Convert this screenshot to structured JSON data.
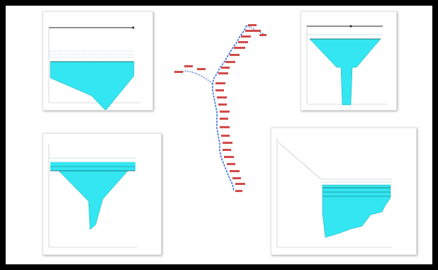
{
  "panels": {
    "top_left": {
      "title": "",
      "legend": [
        "",
        "",
        "",
        "",
        "",
        "",
        "",
        "",
        "",
        ""
      ]
    },
    "top_right": {
      "title": "",
      "legend": [
        "",
        "",
        "",
        "",
        "",
        "",
        "",
        "",
        "",
        ""
      ]
    },
    "bottom_left": {
      "title": "",
      "legend": [
        "",
        "",
        "",
        "",
        "",
        "",
        "",
        "",
        "",
        ""
      ],
      "footnote": ""
    },
    "bottom_right": {
      "title": "",
      "legend": [
        "",
        "",
        "",
        "",
        "",
        "",
        "",
        "",
        "",
        "",
        "",
        ""
      ]
    }
  },
  "river_map": {
    "station_labels": [
      "",
      "",
      "",
      "",
      "",
      "",
      "",
      "",
      "",
      "",
      "",
      "",
      "",
      "",
      "",
      "",
      "",
      "",
      "",
      "",
      "",
      "",
      "",
      "",
      "",
      "",
      "",
      "",
      "",
      ""
    ]
  },
  "colors": {
    "water_fill": "#33e6f2",
    "channel_line": "#3b6fd6",
    "label_red": "#d34a4a",
    "frame": "#000000"
  }
}
